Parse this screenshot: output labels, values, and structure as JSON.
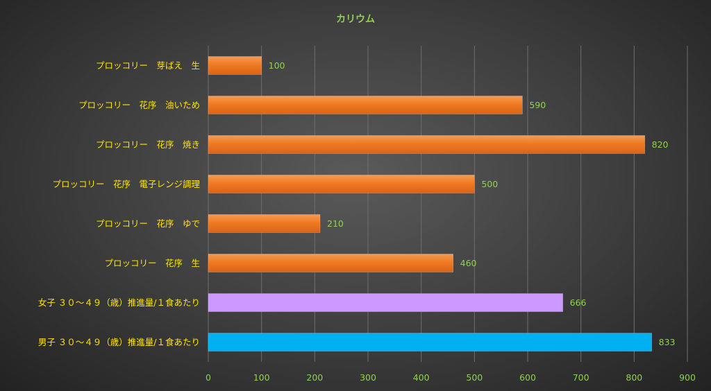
{
  "chart_data": {
    "type": "bar",
    "orientation": "horizontal",
    "title": "カリウム",
    "categories": [
      "プロッコリー　芽ばえ　生",
      "プロッコリー　花序　油いため",
      "プロッコリー　花序　焼き",
      "プロッコリー　花序　電子レンジ調理",
      "プロッコリー　花序　ゆで",
      "プロッコリー　花序　生",
      "女子 ３０～４９（歳）推進量/１食あたり",
      "男子 ３０～４９（歳）推進量/１食あたり"
    ],
    "values": [
      100,
      590,
      820,
      500,
      210,
      460,
      666,
      833
    ],
    "bar_colors": [
      "#f07a22",
      "#f07a22",
      "#f07a22",
      "#f07a22",
      "#f07a22",
      "#f07a22",
      "#cc99ff",
      "#00b0f0"
    ],
    "xlim": [
      0,
      900
    ],
    "xticks": [
      "0",
      "100",
      "200",
      "300",
      "400",
      "500",
      "600",
      "700",
      "800",
      "900"
    ],
    "xlabel": "",
    "ylabel": "",
    "grid": true,
    "colors": {
      "text_category": "#ffe600",
      "text_axis": "#92d050",
      "grid": "#6e6e6e"
    }
  }
}
